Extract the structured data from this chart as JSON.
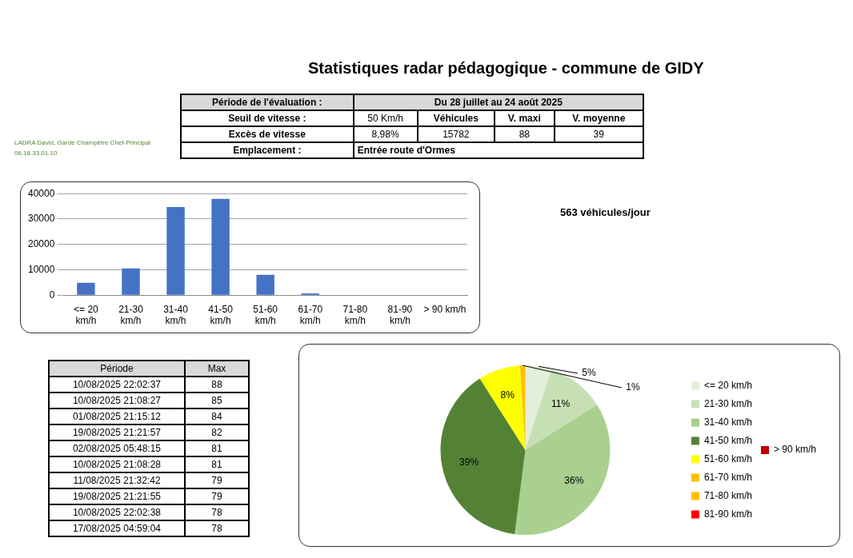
{
  "chart_data": [
    {
      "type": "other",
      "annotations": [
        "LADRA David, Garde Champêtre Chef-Principal",
        "06.18.33.01.10"
      ]
    },
    {
      "type": "other",
      "title": "Statistiques radar pédagogique - commune de GIDY",
      "annotations": [
        "Période de l'évaluation :",
        "Du 28 juillet au 24 août 2025",
        "Seuil de vitesse :",
        "50 Km/h",
        "Véhicules",
        "V. maxi",
        "V. moyenne",
        "Excès de vitesse",
        "8,98%",
        "15782",
        "88",
        "39",
        "Emplacement :",
        "Entrée route d'Ormes"
      ]
    },
    {
      "type": "bar",
      "categories": [
        "<= 20 km/h",
        "21-30 km/h",
        "31-40 km/h",
        "41-50 km/h",
        "51-60 km/h",
        "61-70 km/h",
        "71-80 km/h",
        "81-90 km/h",
        "> 90 km/h"
      ],
      "values": [
        4900,
        10500,
        34700,
        37900,
        8000,
        700,
        0,
        0,
        0
      ],
      "color": "#4472c4",
      "ylim": [
        0,
        40000
      ],
      "yticks": [
        0,
        10000,
        20000,
        30000,
        40000
      ],
      "grid": "y"
    },
    {
      "type": "other",
      "annotations": [
        "563 véhicules/jour"
      ]
    },
    {
      "type": "other",
      "annotations": [
        "Période",
        "Max",
        "10/08/2025 22:02:37",
        "88",
        "10/08/2025 21:08:27",
        "85",
        "01/08/2025 21:15:12",
        "84",
        "19/08/2025 21:21:57",
        "82",
        "02/08/2025 05:48:15",
        "81",
        "10/08/2025 21:08:28",
        "81",
        "11/08/2025 21:32:42",
        "79",
        "19/08/2025 21:21:55",
        "79",
        "10/08/2025 22:02:38",
        "78",
        "17/08/2025 04:59:04",
        "78"
      ]
    },
    {
      "type": "pie",
      "categories": [
        "<= 20 km/h",
        "21-30 km/h",
        "31-40 km/h",
        "41-50 km/h",
        "51-60 km/h",
        "61-70 km/h",
        "71-80 km/h",
        "81-90 km/h",
        "> 90 km/h"
      ],
      "values": [
        5,
        11,
        36,
        39,
        8,
        1,
        0,
        0,
        0
      ],
      "colors": [
        "#e2efda",
        "#c6e0b4",
        "#a9d08e",
        "#548235",
        "#ffff00",
        "#ffc000",
        "#ffc000",
        "#ff0000",
        "#c00000"
      ],
      "value_labels": [
        "5%",
        "11%",
        "36%",
        "39%",
        "8%",
        "1%",
        null,
        null,
        null
      ],
      "legend": "right"
    }
  ]
}
